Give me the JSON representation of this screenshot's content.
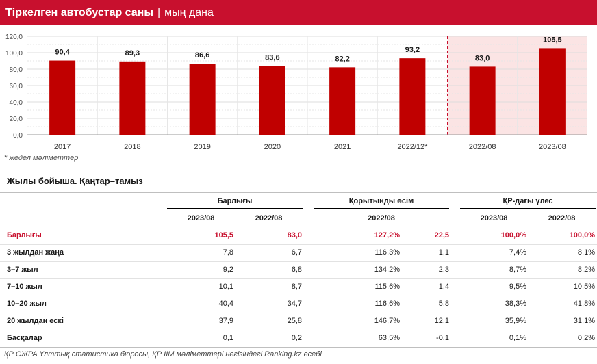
{
  "header": {
    "title": "Тіркелген автобустар саны",
    "separator": "|",
    "unit": "мың дана"
  },
  "chart_data": {
    "type": "bar",
    "categories": [
      "2017",
      "2018",
      "2019",
      "2020",
      "2021",
      "2022/12*",
      "2022/08",
      "2023/08"
    ],
    "values": [
      90.4,
      89.3,
      86.6,
      83.6,
      82.2,
      93.2,
      83.0,
      105.5
    ],
    "value_labels": [
      "90,4",
      "89,3",
      "86,6",
      "83,6",
      "82,2",
      "93,2",
      "83,0",
      "105,5"
    ],
    "yticks": [
      0,
      20,
      40,
      60,
      80,
      100,
      120
    ],
    "ytick_labels": [
      "0,0",
      "20,0",
      "40,0",
      "60,0",
      "80,0",
      "100,0",
      "120,0"
    ],
    "ylim": [
      0,
      120
    ],
    "bar_color": "#c00000",
    "highlight_color": "#fbe4e4",
    "highlight_from_index": 6,
    "grid": true
  },
  "note": "* жедел мәліметтер",
  "table": {
    "title": "Жылы бойыша. Қаңтар–тамыз",
    "groups": [
      "Барлығы",
      "Қорытынды өсім",
      "ҚР-дағы үлес"
    ],
    "subheaders": [
      "2023/08",
      "2022/08",
      "2022/08",
      "2023/08",
      "2022/08"
    ],
    "rows": [
      {
        "label": "Барлығы",
        "values": [
          "105,5",
          "83,0",
          "127,2%",
          "22,5",
          "100,0%",
          "100,0%"
        ],
        "highlight": true
      },
      {
        "label": "3 жылдан жаңа",
        "values": [
          "7,8",
          "6,7",
          "116,3%",
          "1,1",
          "7,4%",
          "8,1%"
        ]
      },
      {
        "label": "3–7 жыл",
        "values": [
          "9,2",
          "6,8",
          "134,2%",
          "2,3",
          "8,7%",
          "8,2%"
        ]
      },
      {
        "label": "7–10 жыл",
        "values": [
          "10,1",
          "8,7",
          "115,6%",
          "1,4",
          "9,5%",
          "10,5%"
        ]
      },
      {
        "label": "10–20 жыл",
        "values": [
          "40,4",
          "34,7",
          "116,6%",
          "5,8",
          "38,3%",
          "41,8%"
        ]
      },
      {
        "label": "20 жылдан ескі",
        "values": [
          "37,9",
          "25,8",
          "146,7%",
          "12,1",
          "35,9%",
          "31,1%"
        ]
      },
      {
        "label": "Басқалар",
        "values": [
          "0,1",
          "0,2",
          "63,5%",
          "-0,1",
          "0,1%",
          "0,2%"
        ]
      }
    ]
  },
  "source": "ҚР СЖРА Ұлттық статистика бюросы, ҚР ІІМ мәліметтері негізіндегі Ranking.kz есебі"
}
